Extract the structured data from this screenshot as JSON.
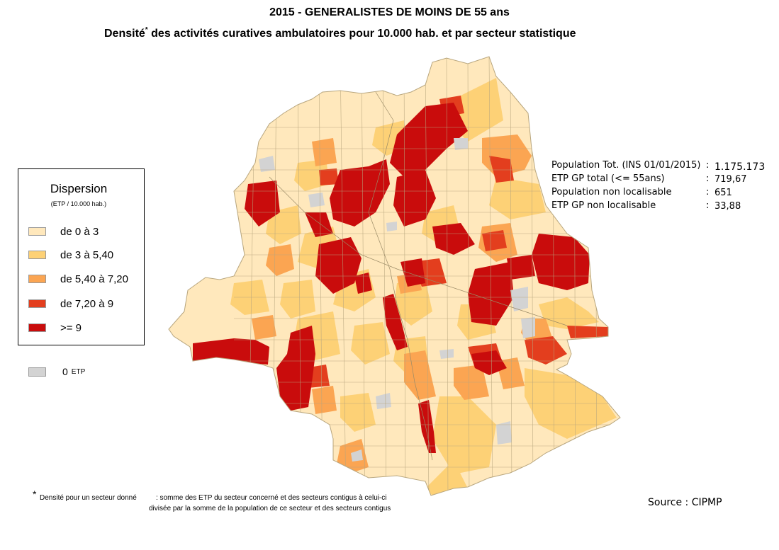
{
  "title": {
    "line1": "2015 - GENERALISTES DE MOINS DE 55 ans",
    "line2_pre": "Densité",
    "line2_star": "*",
    "line2_post": " des activités curatives ambulatoires pour 10.000 hab. et par secteur statistique"
  },
  "legend": {
    "title": "Dispersion",
    "subtitle": "(ETP / 10.000 hab.)",
    "items": [
      {
        "label": "de 0 à 3",
        "color": "#FFE8BC"
      },
      {
        "label": "de 3 à 5,40",
        "color": "#FDD176"
      },
      {
        "label": "de 5,40 à 7,20",
        "color": "#FBA552"
      },
      {
        "label": "de 7,20 à 9",
        "color": "#E33E1E"
      },
      {
        "label": ">= 9",
        "color": "#C90C0C"
      }
    ],
    "zero": {
      "value": "0",
      "unit": "ETP",
      "color": "#D3D3D3"
    }
  },
  "stats": [
    {
      "label": "Population Tot. (INS 01/01/2015)",
      "colon": ":",
      "value": "1.175.173"
    },
    {
      "label": "ETP GP total (<= 55ans)",
      "colon": ":",
      "value": "719,67"
    },
    {
      "label": "Population non localisable",
      "colon": ":",
      "value": "651"
    },
    {
      "label": "ETP GP non localisable",
      "colon": ":",
      "value": "33,88"
    }
  ],
  "note": {
    "star": "*",
    "line1_a": "Densité pour un secteur donné",
    "line1_b": ": somme des ETP du secteur concerné et des secteurs contigus à celui-ci",
    "line2": "divisée  par la somme de la population de ce secteur et des secteurs contigus"
  },
  "source": "Source : CIPMP",
  "map_colors": {
    "outline": "#b8a67e",
    "cls0": "#FFE8BC",
    "cls1": "#FDD176",
    "cls2": "#FBA552",
    "cls3": "#E33E1E",
    "cls4": "#C90C0C",
    "zero": "#D3D3D3"
  }
}
